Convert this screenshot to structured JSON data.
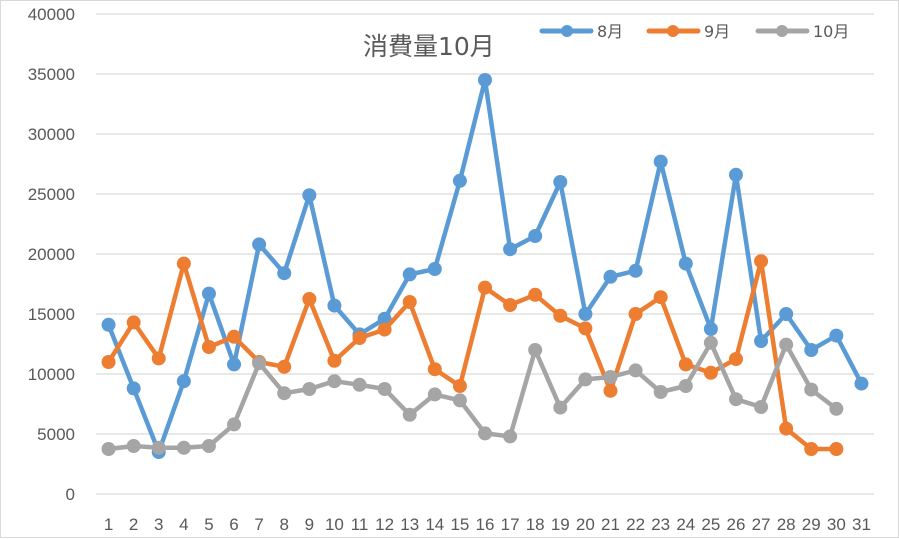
{
  "chart_data": {
    "type": "line",
    "title": "消費量10月",
    "xlabel": "",
    "ylabel": "",
    "ylim": [
      0,
      40000
    ],
    "yticks": [
      0,
      5000,
      10000,
      15000,
      20000,
      25000,
      30000,
      35000,
      40000
    ],
    "grid": true,
    "legend_position": "top-right",
    "categories": [
      "1",
      "2",
      "3",
      "4",
      "5",
      "6",
      "7",
      "8",
      "9",
      "10",
      "11",
      "12",
      "13",
      "14",
      "15",
      "16",
      "17",
      "18",
      "19",
      "20",
      "21",
      "22",
      "23",
      "24",
      "25",
      "26",
      "27",
      "28",
      "29",
      "30",
      "31"
    ],
    "series": [
      {
        "name": "8月",
        "color": "#5b9bd5",
        "values": [
          14100,
          8800,
          3500,
          9400,
          16700,
          10800,
          20800,
          18400,
          24900,
          15700,
          13300,
          14600,
          18300,
          18750,
          26100,
          34500,
          20400,
          21500,
          26000,
          15000,
          18100,
          18600,
          27700,
          19200,
          13750,
          26600,
          12750,
          15000,
          12000,
          13200,
          9200
        ]
      },
      {
        "name": "9月",
        "color": "#ed7d31",
        "values": [
          11000,
          14300,
          11300,
          19200,
          12250,
          13100,
          11000,
          10600,
          16250,
          11100,
          13000,
          13700,
          16000,
          10400,
          9000,
          17200,
          15750,
          16600,
          14850,
          13800,
          8600,
          15000,
          16400,
          10800,
          10100,
          11250,
          19400,
          5450,
          3750,
          3750,
          null
        ]
      },
      {
        "name": "10月",
        "color": "#a5a5a5",
        "values": [
          3750,
          4000,
          3850,
          3850,
          4000,
          5800,
          10900,
          8400,
          8750,
          9400,
          9100,
          8750,
          6600,
          8300,
          7800,
          5050,
          4800,
          12000,
          7200,
          9550,
          9750,
          10300,
          8500,
          9000,
          12600,
          7900,
          7250,
          12450,
          8700,
          7100,
          null
        ]
      }
    ]
  },
  "legend": {
    "items": [
      {
        "label": "8月",
        "color": "#5b9bd5"
      },
      {
        "label": "9月",
        "color": "#ed7d31"
      },
      {
        "label": "10月",
        "color": "#a5a5a5"
      }
    ]
  }
}
